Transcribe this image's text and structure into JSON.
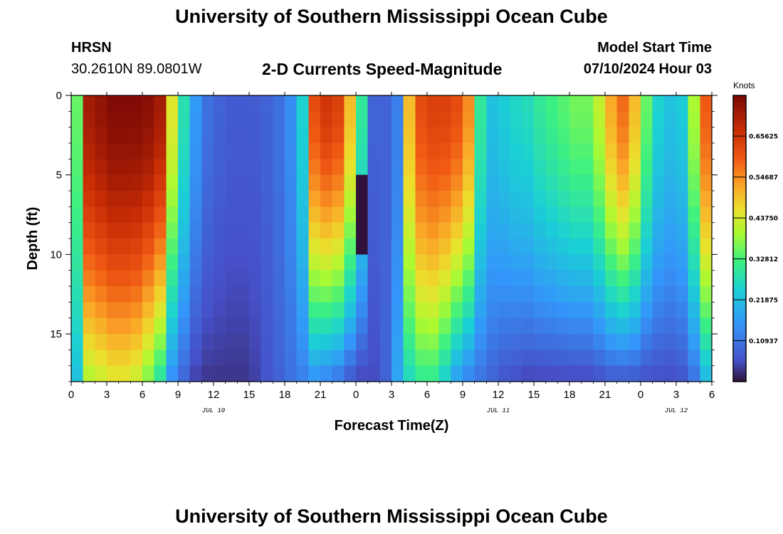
{
  "page_title": "University of Southern Mississippi Ocean Cube",
  "station": {
    "id": "HRSN",
    "coords": "30.2610N  89.0801W"
  },
  "model": {
    "label": "Model Start Time",
    "start": "07/10/2024 Hour 03"
  },
  "footer_title": "University of Southern Mississippi Ocean Cube",
  "chart_data": {
    "type": "heatmap",
    "title": "2-D Currents Speed-Magnitude",
    "xlabel": "Forecast Time(Z)",
    "ylabel": "Depth (ft)",
    "x_tick_labels": [
      "0",
      "3",
      "6",
      "9",
      "12",
      "15",
      "18",
      "21",
      "0",
      "3",
      "6",
      "9",
      "12",
      "15",
      "18",
      "21",
      "0",
      "3",
      "6"
    ],
    "x_range_hours": [
      0,
      54
    ],
    "date_labels": [
      {
        "label": "JUL 10",
        "hour": 12
      },
      {
        "label": "JUL 11",
        "hour": 36
      },
      {
        "label": "JUL 12",
        "hour": 51
      }
    ],
    "y_tick_labels": [
      "0",
      "5",
      "10",
      "15"
    ],
    "y_ticks": [
      0,
      5,
      10,
      15
    ],
    "y_range_ft": [
      0,
      18
    ],
    "y_inverted": true,
    "colorbar": {
      "title": "Knots",
      "ticks": [
        "0.10937",
        "0.21875",
        "0.32812",
        "0.43750",
        "0.54687",
        "0.65625"
      ],
      "tick_values": [
        0.10937,
        0.21875,
        0.32812,
        0.4375,
        0.54687,
        0.65625
      ],
      "min": 0.0,
      "max": 0.765
    },
    "grid": {
      "hours_step": 1,
      "depth_step_ft": 1,
      "surface_profile_knots": [
        0.35,
        0.72,
        0.74,
        0.76,
        0.76,
        0.76,
        0.75,
        0.72,
        0.45,
        0.28,
        0.16,
        0.1,
        0.08,
        0.07,
        0.07,
        0.07,
        0.08,
        0.1,
        0.14,
        0.25,
        0.62,
        0.66,
        0.64,
        0.5,
        0.3,
        0.08,
        0.08,
        0.12,
        0.5,
        0.62,
        0.64,
        0.64,
        0.62,
        0.55,
        0.3,
        0.22,
        0.24,
        0.26,
        0.27,
        0.3,
        0.32,
        0.34,
        0.36,
        0.36,
        0.42,
        0.52,
        0.58,
        0.5,
        0.35,
        0.25,
        0.22,
        0.24,
        0.4,
        0.6
      ],
      "bottom_profile_knots": [
        0.22,
        0.4,
        0.42,
        0.44,
        0.44,
        0.42,
        0.36,
        0.28,
        0.14,
        0.08,
        0.04,
        0.03,
        0.03,
        0.03,
        0.03,
        0.04,
        0.06,
        0.08,
        0.1,
        0.12,
        0.14,
        0.12,
        0.1,
        0.06,
        0.04,
        0.05,
        0.08,
        0.18,
        0.26,
        0.3,
        0.3,
        0.24,
        0.16,
        0.12,
        0.1,
        0.08,
        0.06,
        0.05,
        0.04,
        0.04,
        0.04,
        0.04,
        0.04,
        0.04,
        0.05,
        0.06,
        0.06,
        0.06,
        0.05,
        0.05,
        0.05,
        0.06,
        0.1,
        0.2
      ],
      "min_spot": {
        "hour": 24,
        "depth_from": 5,
        "depth_to": 10,
        "value": 0.0
      }
    }
  }
}
